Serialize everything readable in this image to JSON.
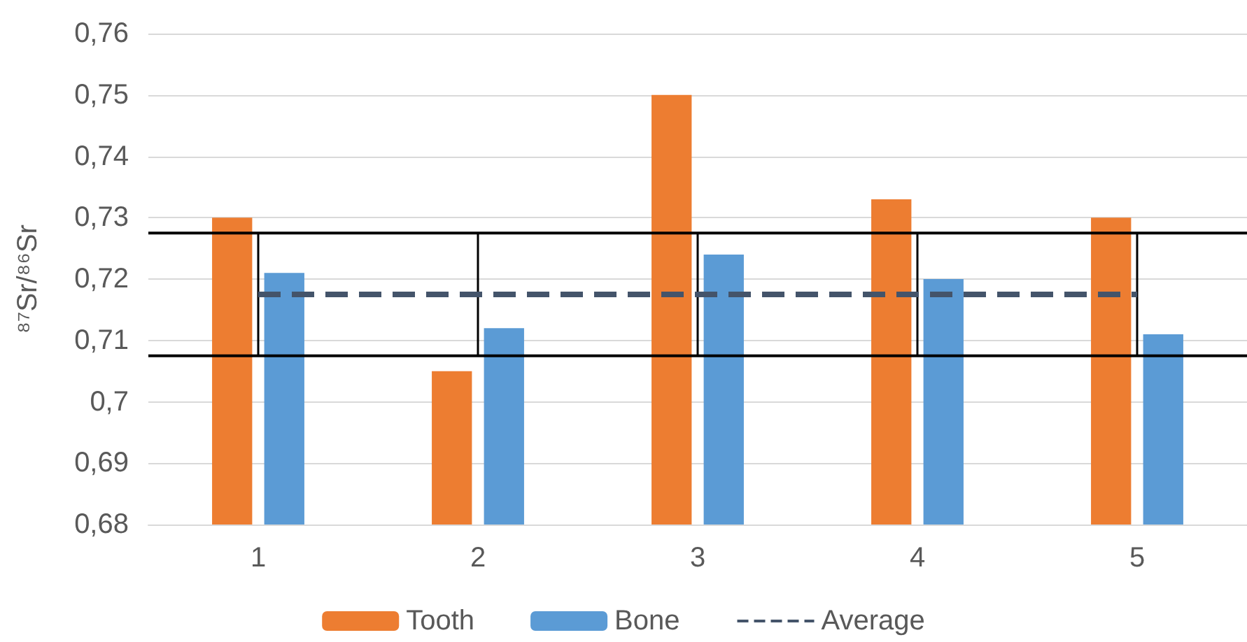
{
  "chart_data": {
    "type": "bar",
    "ylabel": "⁸⁷Sr/⁸⁶Sr",
    "categories": [
      "1",
      "2",
      "3",
      "4",
      "5"
    ],
    "series": [
      {
        "name": "Tooth",
        "color": "#ed7d31",
        "values": [
          0.73,
          0.705,
          0.75,
          0.733,
          0.73
        ]
      },
      {
        "name": "Bone",
        "color": "#5b9bd5",
        "values": [
          0.721,
          0.712,
          0.724,
          0.72,
          0.711
        ]
      },
      {
        "name": "Average",
        "type": "line",
        "color": "#44546a",
        "line_style": "dashed",
        "marker": "none",
        "values": [
          0.7175,
          0.7175,
          0.7175,
          0.7175,
          0.7175
        ],
        "errors": [
          0.01,
          0.01,
          0.01,
          0.01,
          0.01
        ]
      }
    ],
    "ylim": [
      0.68,
      0.76
    ],
    "yticks": [
      {
        "value": 0.68,
        "label": "0,68"
      },
      {
        "value": 0.69,
        "label": "0,69"
      },
      {
        "value": 0.7,
        "label": "0,7"
      },
      {
        "value": 0.71,
        "label": "0,71"
      },
      {
        "value": 0.72,
        "label": "0,72"
      },
      {
        "value": 0.73,
        "label": "0,73"
      },
      {
        "value": 0.74,
        "label": "0,74"
      },
      {
        "value": 0.75,
        "label": "0,75"
      },
      {
        "value": 0.76,
        "label": "0,76"
      }
    ],
    "ref_lines": [
      {
        "axis": "y",
        "value": 0.7275,
        "color": "#000000"
      },
      {
        "axis": "y",
        "value": 0.7075,
        "color": "#000000"
      }
    ],
    "grid": "y",
    "legend": "bottom"
  }
}
